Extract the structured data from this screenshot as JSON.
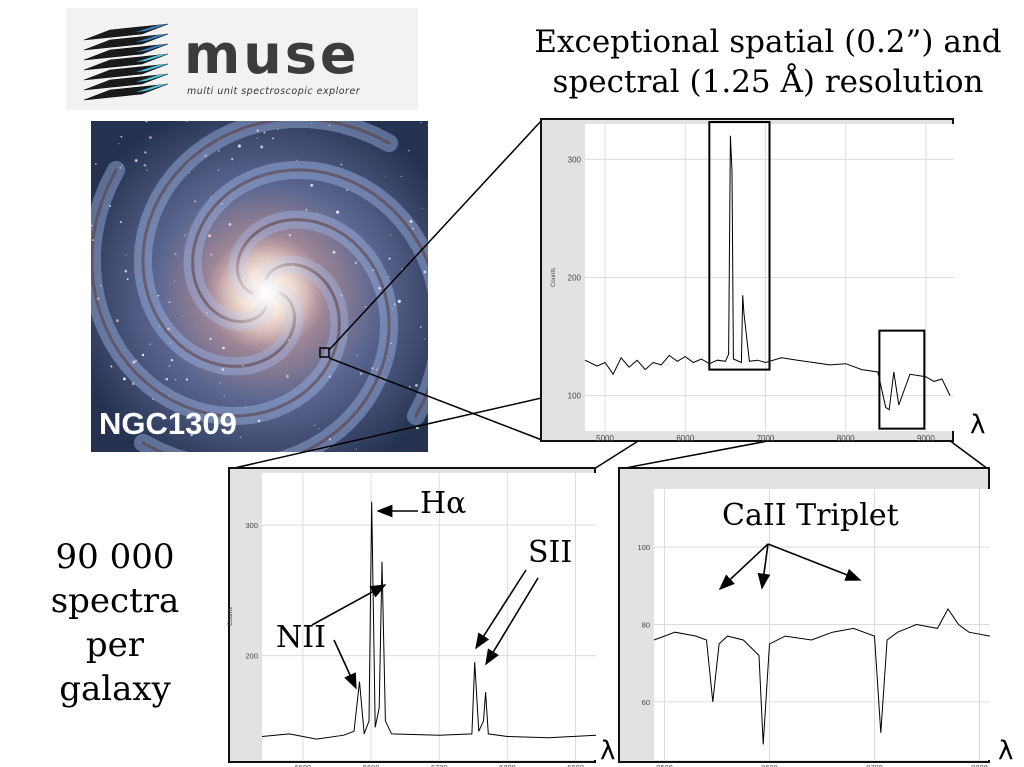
{
  "logo": {
    "word": "muse",
    "subtitle": "multi unit spectroscopic explorer",
    "colors": {
      "cube_dark": "#1b1b1b",
      "cube_blue": "#3d7fc4",
      "cube_cyan": "#4fc3e0"
    }
  },
  "headline": {
    "line1": "Exceptional spatial (0.2”) and",
    "line2": "spectral (1.25 Å) resolution"
  },
  "galaxy": {
    "name": "NGC1309"
  },
  "side_text": {
    "line1": "90 000",
    "line2": "spectra per",
    "line3": "galaxy"
  },
  "annotations": {
    "ha": "Hα",
    "nii": "NII",
    "sii": "SII",
    "caii": "CaII Triplet"
  },
  "lambda_symbol": "λ",
  "chart_data": [
    {
      "type": "line",
      "id": "full-spectrum",
      "ylabel": "Counts",
      "xlim": [
        4750,
        9350
      ],
      "ylim": [
        70,
        330
      ],
      "xticks": [
        5000,
        6000,
        7000,
        8000,
        9000
      ],
      "yticks": [
        100,
        200,
        300
      ],
      "grid": true,
      "series": [
        {
          "x": [
            4750,
            4900,
            5000,
            5100,
            5200,
            5300,
            5400,
            5500,
            5600,
            5700,
            5800,
            5900,
            6000,
            6100,
            6200,
            6300,
            6400,
            6500,
            6540,
            6563,
            6583,
            6600,
            6700,
            6716,
            6731,
            6800,
            6900,
            7000,
            7200,
            7400,
            7600,
            7800,
            8000,
            8200,
            8400,
            8498,
            8542,
            8600,
            8662,
            8800,
            9000,
            9100,
            9200,
            9300
          ],
          "y": [
            130,
            125,
            128,
            118,
            132,
            124,
            130,
            122,
            128,
            126,
            134,
            129,
            133,
            128,
            131,
            127,
            130,
            129,
            135,
            320,
            290,
            131,
            128,
            185,
            170,
            129,
            130,
            128,
            132,
            130,
            128,
            126,
            127,
            122,
            120,
            90,
            88,
            120,
            92,
            118,
            116,
            112,
            114,
            100
          ]
        }
      ],
      "highlight_boxes": [
        {
          "x": [
            6300,
            7050
          ]
        },
        {
          "x": [
            8420,
            8980
          ]
        }
      ]
    },
    {
      "type": "line",
      "id": "halpha-zoom",
      "ylabel": "Counts",
      "xlim": [
        6440,
        6930
      ],
      "ylim": [
        120,
        340
      ],
      "xticks": [
        6500,
        6600,
        6700,
        6800,
        6900
      ],
      "yticks": [
        200,
        300
      ],
      "grid": true,
      "series": [
        {
          "x": [
            6440,
            6480,
            6520,
            6560,
            6575,
            6583,
            6590,
            6597,
            6601,
            6606,
            6612,
            6616,
            6621,
            6630,
            6700,
            6748,
            6752,
            6758,
            6765,
            6768,
            6772,
            6800,
            6860,
            6930
          ],
          "y": [
            138,
            140,
            136,
            139,
            142,
            180,
            140,
            150,
            318,
            145,
            160,
            272,
            150,
            140,
            139,
            140,
            195,
            142,
            150,
            172,
            140,
            138,
            137,
            139
          ]
        }
      ]
    },
    {
      "type": "line",
      "id": "caii-zoom",
      "xlim": [
        8490,
        8810
      ],
      "ylim": [
        45,
        115
      ],
      "xticks": [
        8500,
        8600,
        8700,
        8800
      ],
      "yticks": [
        60,
        80,
        100
      ],
      "grid": true,
      "series": [
        {
          "x": [
            8490,
            8510,
            8530,
            8540,
            8546,
            8552,
            8560,
            8575,
            8590,
            8594,
            8600,
            8615,
            8640,
            8660,
            8680,
            8700,
            8706,
            8712,
            8722,
            8740,
            8760,
            8770,
            8780,
            8790,
            8810
          ],
          "y": [
            76,
            78,
            77,
            76,
            60,
            75,
            77,
            76,
            72,
            49,
            75,
            77,
            76,
            78,
            79,
            77,
            52,
            76,
            78,
            80,
            79,
            84,
            80,
            78,
            77
          ]
        }
      ]
    }
  ]
}
